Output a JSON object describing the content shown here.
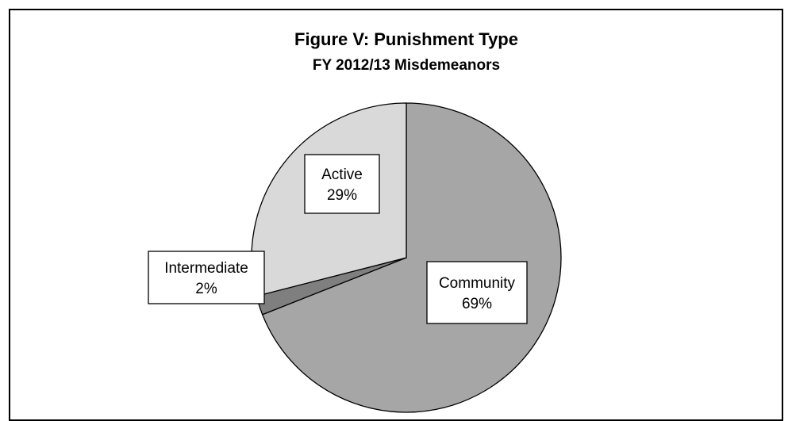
{
  "chart_data": {
    "type": "pie",
    "title": "Figure V: Punishment Type",
    "subtitle": "FY 2012/13 Misdemeanors",
    "slices": [
      {
        "label": "Community",
        "value": 69,
        "value_label": "69%",
        "color": "#a6a6a6"
      },
      {
        "label": "Intermediate",
        "value": 2,
        "value_label": "2%",
        "color": "#7f7f7f"
      },
      {
        "label": "Active",
        "value": 29,
        "value_label": "29%",
        "color": "#d9d9d9"
      }
    ],
    "start_angle": "12 o'clock",
    "direction": "clockwise",
    "slice_border_color": "#000000",
    "label_box_color": "#ffffff",
    "legend": "none"
  }
}
